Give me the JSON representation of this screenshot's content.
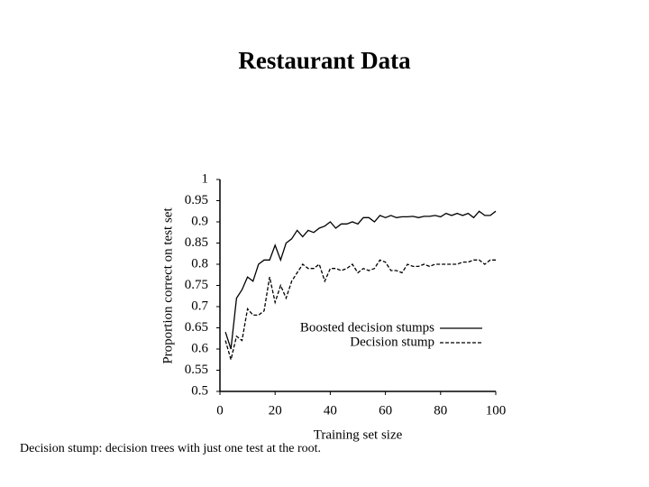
{
  "slide": {
    "title": "Restaurant Data",
    "caption": "Decision stump: decision trees with just one test at the root."
  },
  "chart_data": {
    "type": "line",
    "x_label": "Training set size",
    "y_label": "Proportion correct on test set",
    "x": [
      2,
      4,
      6,
      8,
      10,
      12,
      14,
      16,
      18,
      20,
      22,
      24,
      26,
      28,
      30,
      32,
      34,
      36,
      38,
      40,
      42,
      44,
      46,
      48,
      50,
      52,
      54,
      56,
      58,
      60,
      62,
      64,
      66,
      68,
      70,
      72,
      74,
      76,
      78,
      80,
      82,
      84,
      86,
      88,
      90,
      92,
      94,
      96,
      98,
      100
    ],
    "series": [
      {
        "name": "Boosted decision stumps",
        "color": "#000000",
        "line_style": "solid",
        "values": [
          0.64,
          0.6,
          0.72,
          0.74,
          0.77,
          0.76,
          0.8,
          0.81,
          0.81,
          0.845,
          0.81,
          0.85,
          0.86,
          0.88,
          0.865,
          0.88,
          0.875,
          0.885,
          0.89,
          0.9,
          0.885,
          0.895,
          0.895,
          0.9,
          0.895,
          0.91,
          0.91,
          0.9,
          0.915,
          0.91,
          0.915,
          0.91,
          0.912,
          0.912,
          0.913,
          0.91,
          0.913,
          0.913,
          0.915,
          0.912,
          0.92,
          0.915,
          0.92,
          0.915,
          0.92,
          0.91,
          0.925,
          0.915,
          0.915,
          0.925
        ]
      },
      {
        "name": "Decision stump",
        "color": "#000000",
        "line_style": "dashed",
        "values": [
          0.62,
          0.575,
          0.63,
          0.62,
          0.695,
          0.68,
          0.68,
          0.69,
          0.77,
          0.71,
          0.75,
          0.72,
          0.76,
          0.78,
          0.8,
          0.79,
          0.79,
          0.8,
          0.76,
          0.79,
          0.79,
          0.785,
          0.79,
          0.8,
          0.78,
          0.79,
          0.785,
          0.79,
          0.81,
          0.805,
          0.785,
          0.785,
          0.78,
          0.8,
          0.795,
          0.795,
          0.8,
          0.795,
          0.8,
          0.8,
          0.8,
          0.8,
          0.8,
          0.805,
          0.805,
          0.81,
          0.81,
          0.8,
          0.81,
          0.81
        ]
      }
    ],
    "xlim": [
      0,
      100
    ],
    "xticks": [
      0,
      20,
      40,
      60,
      80,
      100
    ],
    "ylim": [
      0.5,
      1
    ],
    "yticks": [
      0.5,
      0.55,
      0.6,
      0.65,
      0.7,
      0.75,
      0.8,
      0.85,
      0.9,
      0.95,
      1
    ],
    "grid": false,
    "legend": "right"
  }
}
